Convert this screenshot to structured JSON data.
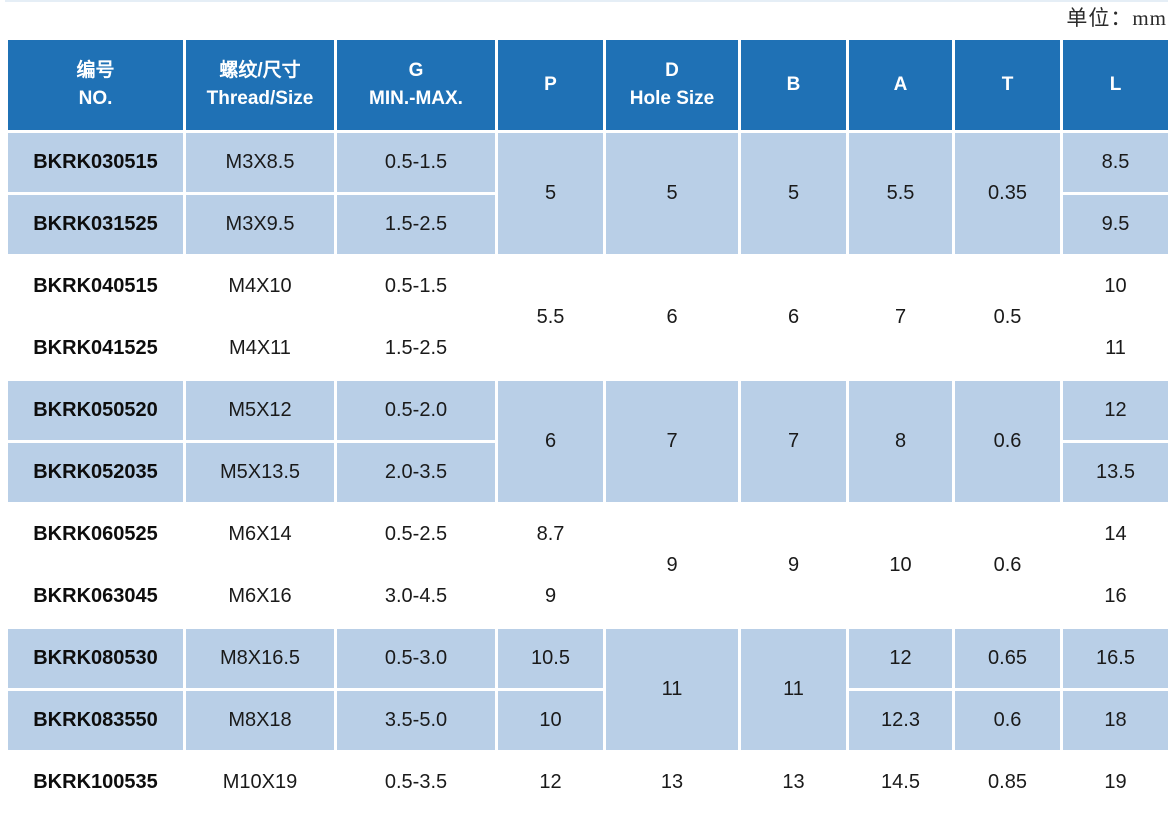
{
  "unit_label": "单位：mm",
  "colors": {
    "header_blue": "#1f71b5",
    "band_blue": "#b9cfe7",
    "header_text": "#ffffff",
    "body_text": "#1a1a1a"
  },
  "table": {
    "headers": [
      {
        "lines": [
          "编号",
          "NO."
        ]
      },
      {
        "lines": [
          "螺纹/尺寸",
          "Thread/Size"
        ]
      },
      {
        "lines": [
          "G",
          "MIN.-MAX."
        ]
      },
      {
        "lines": [
          "P"
        ]
      },
      {
        "lines": [
          "D",
          "Hole Size"
        ]
      },
      {
        "lines": [
          "B"
        ]
      },
      {
        "lines": [
          "A"
        ]
      },
      {
        "lines": [
          "T"
        ]
      },
      {
        "lines": [
          "L"
        ]
      }
    ],
    "rows": [
      {
        "band": "blue",
        "cells": [
          {
            "v": "BKRK030515",
            "bold": true
          },
          {
            "v": "M3X8.5"
          },
          {
            "v": "0.5-1.5"
          },
          {
            "v": "5",
            "rs": 2
          },
          {
            "v": "5",
            "rs": 2
          },
          {
            "v": "5",
            "rs": 2
          },
          {
            "v": "5.5",
            "rs": 2
          },
          {
            "v": "0.35",
            "rs": 2
          },
          {
            "v": "8.5"
          }
        ]
      },
      {
        "band": "blue",
        "cells": [
          {
            "v": "BKRK031525",
            "bold": true
          },
          {
            "v": "M3X9.5"
          },
          {
            "v": "1.5-2.5"
          },
          {
            "v": "9.5"
          }
        ]
      },
      {
        "band": "white",
        "cells": [
          {
            "v": "BKRK040515",
            "bold": true
          },
          {
            "v": "M4X10"
          },
          {
            "v": "0.5-1.5"
          },
          {
            "v": "5.5",
            "rs": 2
          },
          {
            "v": "6",
            "rs": 2
          },
          {
            "v": "6",
            "rs": 2
          },
          {
            "v": "7",
            "rs": 2
          },
          {
            "v": "0.5",
            "rs": 2
          },
          {
            "v": "10"
          }
        ]
      },
      {
        "band": "white",
        "cells": [
          {
            "v": "BKRK041525",
            "bold": true
          },
          {
            "v": "M4X11"
          },
          {
            "v": "1.5-2.5"
          },
          {
            "v": "11"
          }
        ]
      },
      {
        "band": "blue",
        "cells": [
          {
            "v": "BKRK050520",
            "bold": true
          },
          {
            "v": "M5X12"
          },
          {
            "v": "0.5-2.0"
          },
          {
            "v": "6",
            "rs": 2
          },
          {
            "v": "7",
            "rs": 2
          },
          {
            "v": "7",
            "rs": 2
          },
          {
            "v": "8",
            "rs": 2
          },
          {
            "v": "0.6",
            "rs": 2
          },
          {
            "v": "12"
          }
        ]
      },
      {
        "band": "blue",
        "cells": [
          {
            "v": "BKRK052035",
            "bold": true
          },
          {
            "v": "M5X13.5"
          },
          {
            "v": "2.0-3.5"
          },
          {
            "v": "13.5"
          }
        ]
      },
      {
        "band": "white",
        "cells": [
          {
            "v": "BKRK060525",
            "bold": true
          },
          {
            "v": "M6X14"
          },
          {
            "v": "0.5-2.5"
          },
          {
            "v": "8.7"
          },
          {
            "v": "9",
            "rs": 2
          },
          {
            "v": "9",
            "rs": 2
          },
          {
            "v": "10",
            "rs": 2
          },
          {
            "v": "0.6",
            "rs": 2
          },
          {
            "v": "14"
          }
        ]
      },
      {
        "band": "white",
        "cells": [
          {
            "v": "BKRK063045",
            "bold": true
          },
          {
            "v": "M6X16"
          },
          {
            "v": "3.0-4.5"
          },
          {
            "v": "9"
          },
          {
            "v": "16"
          }
        ]
      },
      {
        "band": "blue",
        "cells": [
          {
            "v": "BKRK080530",
            "bold": true
          },
          {
            "v": "M8X16.5"
          },
          {
            "v": "0.5-3.0"
          },
          {
            "v": "10.5"
          },
          {
            "v": "11",
            "rs": 2
          },
          {
            "v": "11",
            "rs": 2
          },
          {
            "v": "12"
          },
          {
            "v": "0.65"
          },
          {
            "v": "16.5"
          }
        ]
      },
      {
        "band": "blue",
        "cells": [
          {
            "v": "BKRK083550",
            "bold": true
          },
          {
            "v": "M8X18"
          },
          {
            "v": "3.5-5.0"
          },
          {
            "v": "10"
          },
          {
            "v": "12.3"
          },
          {
            "v": "0.6"
          },
          {
            "v": "18"
          }
        ]
      },
      {
        "band": "white",
        "cells": [
          {
            "v": "BKRK100535",
            "bold": true
          },
          {
            "v": "M10X19"
          },
          {
            "v": "0.5-3.5"
          },
          {
            "v": "12"
          },
          {
            "v": "13"
          },
          {
            "v": "13"
          },
          {
            "v": "14.5"
          },
          {
            "v": "0.85"
          },
          {
            "v": "19"
          }
        ]
      }
    ]
  },
  "chart_data": {
    "type": "table",
    "title": "",
    "unit": "单位：mm",
    "columns": [
      "编号 NO.",
      "螺纹/尺寸 Thread/Size",
      "G MIN.-MAX.",
      "P",
      "D Hole Size",
      "B",
      "A",
      "T",
      "L"
    ],
    "rows": [
      [
        "BKRK030515",
        "M3X8.5",
        "0.5-1.5",
        "5",
        "5",
        "5",
        "5.5",
        "0.35",
        "8.5"
      ],
      [
        "BKRK031525",
        "M3X9.5",
        "1.5-2.5",
        "5",
        "5",
        "5",
        "5.5",
        "0.35",
        "9.5"
      ],
      [
        "BKRK040515",
        "M4X10",
        "0.5-1.5",
        "5.5",
        "6",
        "6",
        "7",
        "0.5",
        "10"
      ],
      [
        "BKRK041525",
        "M4X11",
        "1.5-2.5",
        "5.5",
        "6",
        "6",
        "7",
        "0.5",
        "11"
      ],
      [
        "BKRK050520",
        "M5X12",
        "0.5-2.0",
        "6",
        "7",
        "7",
        "8",
        "0.6",
        "12"
      ],
      [
        "BKRK052035",
        "M5X13.5",
        "2.0-3.5",
        "6",
        "7",
        "7",
        "8",
        "0.6",
        "13.5"
      ],
      [
        "BKRK060525",
        "M6X14",
        "0.5-2.5",
        "8.7",
        "9",
        "9",
        "10",
        "0.6",
        "14"
      ],
      [
        "BKRK063045",
        "M6X16",
        "3.0-4.5",
        "9",
        "9",
        "9",
        "10",
        "0.6",
        "16"
      ],
      [
        "BKRK080530",
        "M8X16.5",
        "0.5-3.0",
        "10.5",
        "11",
        "11",
        "12",
        "0.65",
        "16.5"
      ],
      [
        "BKRK083550",
        "M8X18",
        "3.5-5.0",
        "10",
        "11",
        "11",
        "12.3",
        "0.6",
        "18"
      ],
      [
        "BKRK100535",
        "M10X19",
        "0.5-3.5",
        "12",
        "13",
        "13",
        "14.5",
        "0.85",
        "19"
      ]
    ],
    "layout": {
      "banded_row_groups": true,
      "group_size_rows": 2,
      "band_colors": [
        "#b9cfe7",
        "#ffffff"
      ],
      "header_color": "#1f71b5"
    }
  }
}
